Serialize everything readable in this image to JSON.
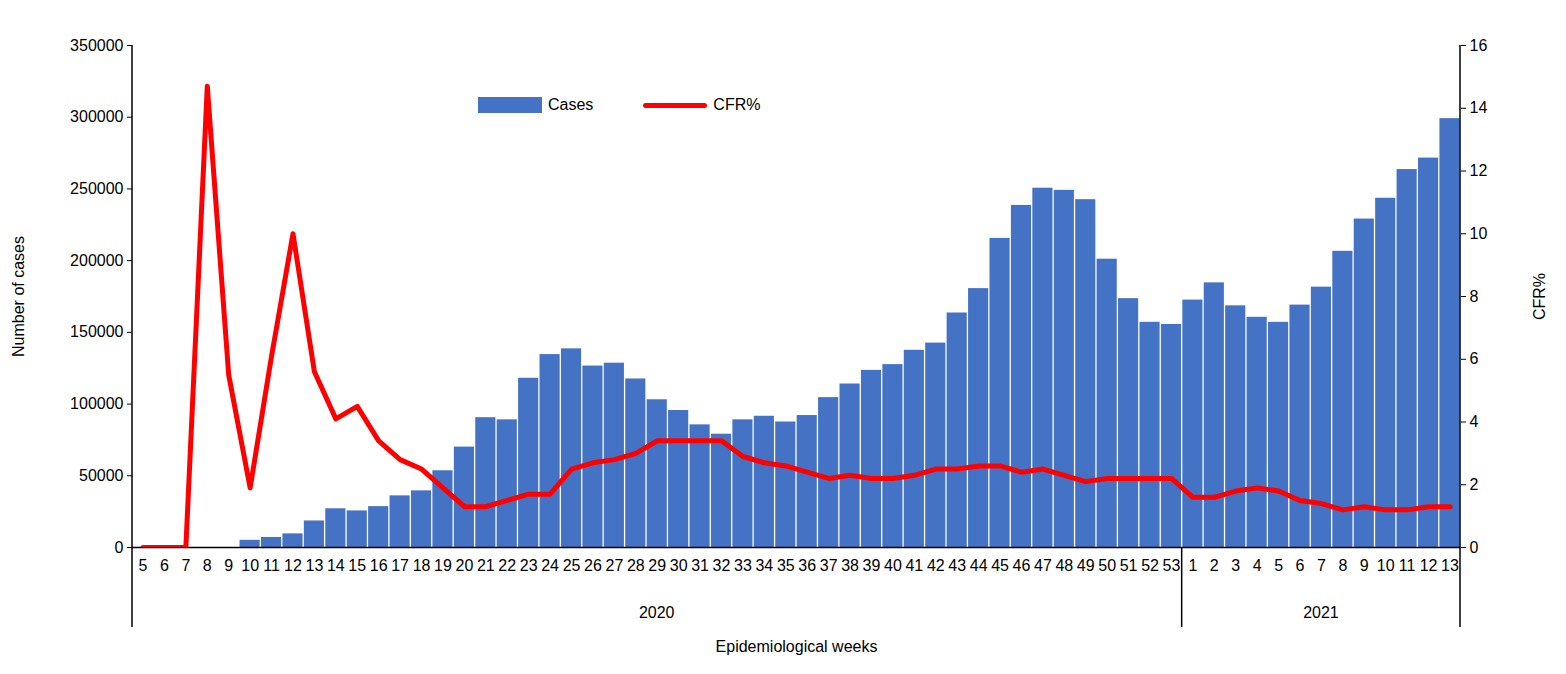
{
  "chart_data": {
    "type": "bar",
    "xlabel": "Epidemiological weeks",
    "ylabel": "Number of cases",
    "y2label": "CFR%",
    "categories": [
      5,
      6,
      7,
      8,
      9,
      10,
      11,
      12,
      13,
      14,
      15,
      16,
      17,
      18,
      19,
      20,
      21,
      22,
      23,
      24,
      25,
      26,
      27,
      28,
      29,
      30,
      31,
      32,
      33,
      34,
      35,
      36,
      37,
      38,
      39,
      40,
      41,
      42,
      43,
      44,
      45,
      46,
      47,
      48,
      49,
      50,
      51,
      52,
      53,
      1,
      2,
      3,
      4,
      5,
      6,
      7,
      8,
      9,
      10,
      11,
      12,
      13
    ],
    "year_groups": [
      {
        "label": "2020",
        "count": 49
      },
      {
        "label": "2021",
        "count": 13
      }
    ],
    "series": [
      {
        "name": "Cases",
        "type": "bar",
        "color": "#4472c4",
        "values": [
          0,
          0,
          0,
          0,
          0,
          5000,
          7000,
          9500,
          18500,
          27000,
          25500,
          28500,
          36000,
          39500,
          53500,
          70000,
          90500,
          89000,
          118000,
          134500,
          138500,
          126500,
          128500,
          117500,
          103000,
          95500,
          85500,
          79000,
          89000,
          91500,
          87500,
          92000,
          104500,
          114000,
          123500,
          127500,
          137500,
          142500,
          163500,
          180500,
          215500,
          238500,
          250500,
          249000,
          242500,
          201000,
          173500,
          157000,
          155500,
          172500,
          184500,
          168500,
          160500,
          157000,
          169000,
          181500,
          206500,
          229000,
          243500,
          263500,
          271500,
          299000
        ]
      },
      {
        "name": "CFR%",
        "type": "line",
        "color": "#ff0000",
        "axis": "y2",
        "values": [
          0,
          0,
          0,
          14.7,
          5.5,
          1.9,
          6.1,
          10.0,
          5.6,
          4.1,
          4.5,
          3.4,
          2.8,
          2.5,
          1.9,
          1.3,
          1.3,
          1.5,
          1.7,
          1.7,
          2.5,
          2.7,
          2.8,
          3.0,
          3.4,
          3.4,
          3.4,
          3.4,
          2.9,
          2.7,
          2.6,
          2.4,
          2.2,
          2.3,
          2.2,
          2.2,
          2.3,
          2.5,
          2.5,
          2.6,
          2.6,
          2.4,
          2.5,
          2.3,
          2.1,
          2.2,
          2.2,
          2.2,
          2.2,
          1.6,
          1.6,
          1.8,
          1.9,
          1.8,
          1.5,
          1.4,
          1.2,
          1.3,
          1.2,
          1.2,
          1.3,
          1.3
        ]
      }
    ],
    "ylim": [
      0,
      350000
    ],
    "yticks": [
      0,
      50000,
      100000,
      150000,
      200000,
      250000,
      300000,
      350000
    ],
    "y2lim": [
      0,
      16
    ],
    "y2ticks": [
      0,
      2,
      4,
      6,
      8,
      10,
      12,
      14,
      16
    ],
    "legend": "top"
  }
}
